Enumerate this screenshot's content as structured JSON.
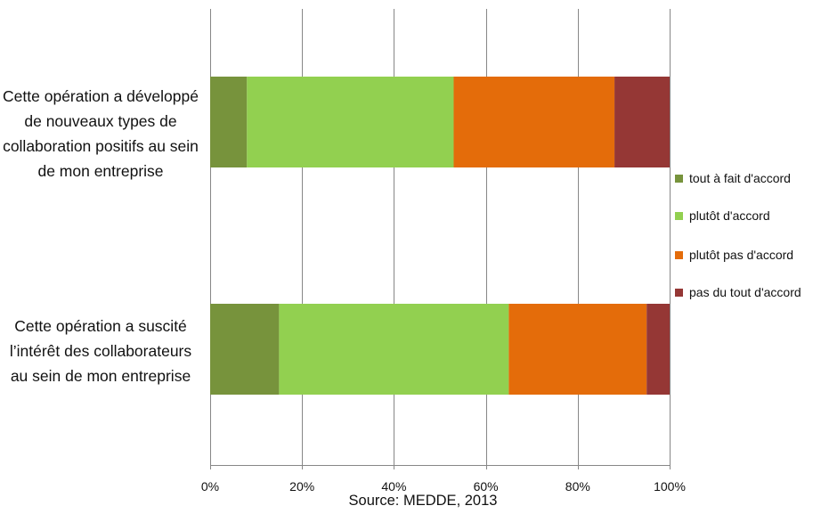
{
  "chart_data": {
    "type": "bar",
    "orientation": "horizontal",
    "stacked": true,
    "percent_stacked": true,
    "categories": [
      "Cette opération a développé de nouveaux types de collaboration positifs au sein de mon entreprise",
      "Cette opération a suscité l’intérêt des collaborateurs au sein de mon entreprise"
    ],
    "series": [
      {
        "name": "tout à fait d'accord",
        "values": [
          8,
          15
        ],
        "color": "#77933c"
      },
      {
        "name": "plutôt d'accord",
        "values": [
          45,
          50
        ],
        "color": "#92d050"
      },
      {
        "name": "plutôt pas d'accord",
        "values": [
          35,
          30
        ],
        "color": "#e46c0a"
      },
      {
        "name": "pas du tout d'accord",
        "values": [
          12,
          5
        ],
        "color": "#953735"
      }
    ],
    "xlim": [
      0,
      100
    ],
    "xticks": [
      "0%",
      "20%",
      "40%",
      "60%",
      "80%",
      "100%"
    ],
    "grid": true,
    "legend_position": "right",
    "source": "Source: MEDDE, 2013"
  }
}
